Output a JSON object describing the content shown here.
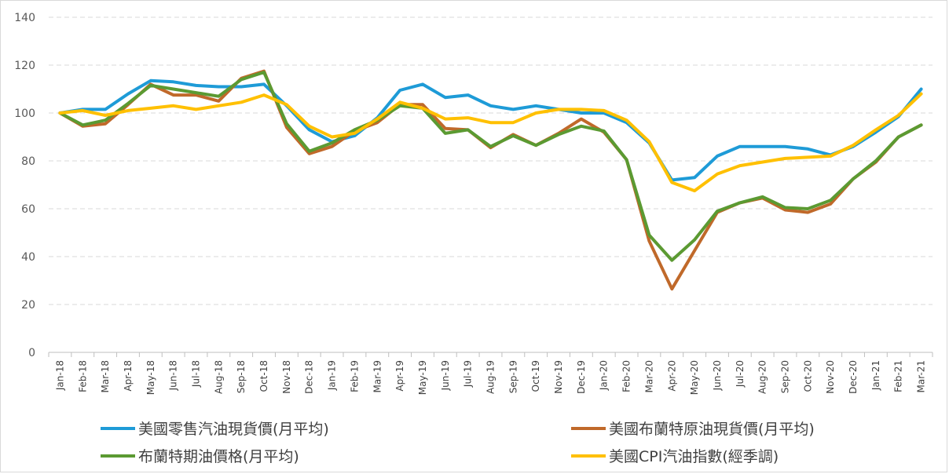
{
  "chart_data": {
    "type": "line",
    "title": "",
    "xlabel": "",
    "ylabel": "",
    "ylim": [
      0,
      140
    ],
    "yticks": [
      0,
      20,
      40,
      60,
      80,
      100,
      120,
      140
    ],
    "grid": true,
    "legend_position": "bottom",
    "categories": [
      "Jan-18",
      "Feb-18",
      "Mar-18",
      "Apr-18",
      "May-18",
      "Jun-18",
      "Jul-18",
      "Aug-18",
      "Sep-18",
      "Oct-18",
      "Nov-18",
      "Dec-18",
      "Jan-19",
      "Feb-19",
      "Mar-19",
      "Apr-19",
      "May-19",
      "Jun-19",
      "Jul-19",
      "Aug-19",
      "Sep-19",
      "Oct-19",
      "Nov-19",
      "Dec-19",
      "Jan-20",
      "Feb-20",
      "Mar-20",
      "Apr-20",
      "May-20",
      "Jun-20",
      "Jul-20",
      "Aug-20",
      "Sep-20",
      "Oct-20",
      "Nov-20",
      "Dec-20",
      "Jan-21",
      "Feb-21",
      "Mar-21"
    ],
    "series": [
      {
        "name": "美國零售汽油現貨價(月平均)",
        "color": "#1e9bd7",
        "values": [
          100,
          101.5,
          101.5,
          108,
          113.5,
          113,
          111.5,
          111,
          111,
          112,
          103,
          93,
          88,
          90.5,
          98,
          109.5,
          112,
          106.5,
          107.5,
          103,
          101.5,
          103,
          101.5,
          100,
          100,
          96,
          87.5,
          72,
          73,
          82,
          86,
          86,
          86,
          85,
          82.5,
          86,
          92,
          98.5,
          110
        ]
      },
      {
        "name": "美國布蘭特原油現貨價(月平均)",
        "color": "#c0692a",
        "values": [
          100,
          94.5,
          95.5,
          103.5,
          112,
          107.5,
          107.5,
          105,
          114.5,
          117.5,
          94,
          83,
          86,
          92.5,
          96,
          103.5,
          103.5,
          93.5,
          93,
          85.5,
          91,
          86.5,
          91.5,
          97.5,
          92,
          80.5,
          46.5,
          26.5,
          42.5,
          58.5,
          62.5,
          64.5,
          59.5,
          58.5,
          62,
          72.5,
          79.5,
          90,
          95
        ]
      },
      {
        "name": "布蘭特期油價格(月平均)",
        "color": "#5b9a32",
        "values": [
          100,
          95,
          97,
          104,
          111.5,
          110,
          108.5,
          107,
          114,
          117,
          95.5,
          84,
          87.5,
          93,
          97,
          103,
          102,
          91.5,
          93,
          86,
          90.5,
          86.5,
          91,
          94.5,
          92.5,
          80.5,
          49,
          38.5,
          47,
          59,
          62.5,
          65,
          60.5,
          60,
          63.5,
          72.5,
          80,
          90,
          95
        ]
      },
      {
        "name": "美國CPI汽油指數(經季調)",
        "color": "#ffc000",
        "values": [
          100,
          101,
          99,
          101,
          102,
          103,
          101.5,
          103,
          104.5,
          107.5,
          103.5,
          94.5,
          90,
          91.5,
          97.5,
          104.5,
          102,
          97.5,
          98,
          96,
          96,
          100,
          101.5,
          101.5,
          101,
          97,
          88,
          71,
          67.5,
          74.5,
          78,
          79.5,
          81,
          81.5,
          82,
          86.5,
          93,
          99,
          108
        ]
      }
    ]
  }
}
